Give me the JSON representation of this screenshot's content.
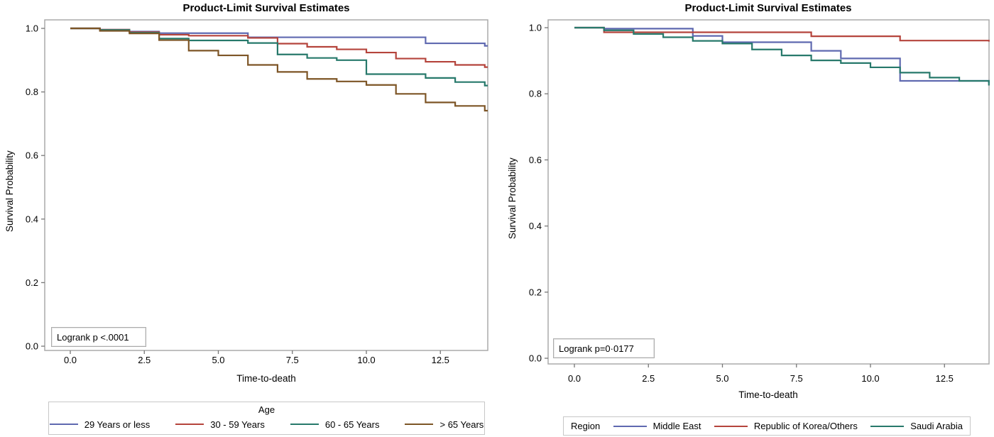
{
  "figure": {
    "background": "#ffffff",
    "frame_color": "#aaaaaa",
    "tick_color": "#777777"
  },
  "charts": [
    {
      "title": "Product-Limit Survival Estimates",
      "ylabel": "Survival Probability",
      "xlabel": "Time-to-death",
      "annotation": "Logrank p <.0001",
      "legend": {
        "title": "Age",
        "layout": "title-top",
        "position": "bottom"
      },
      "chart_data": {
        "type": "line",
        "subtype": "kaplan-meier-step",
        "title": "Product-Limit Survival Estimates",
        "xlabel": "Time-to-death",
        "ylabel": "Survival Probability",
        "xlim": [
          0,
          14.1
        ],
        "ylim": [
          0,
          1.0
        ],
        "xticks": [
          0.0,
          2.5,
          5.0,
          7.5,
          10.0,
          12.5
        ],
        "yticks": [
          1.0,
          0.8,
          0.6,
          0.4,
          0.2,
          0.0
        ],
        "grid": false,
        "legend_position": "bottom",
        "series": [
          {
            "name": "29 Years or less",
            "color": "#5f69b0",
            "steps": [
              [
                0,
                1.0
              ],
              [
                1,
                0.996
              ],
              [
                2,
                0.99
              ],
              [
                3,
                0.985
              ],
              [
                6,
                0.972
              ],
              [
                12,
                0.953
              ],
              [
                14,
                0.945
              ]
            ]
          },
          {
            "name": "30 - 59 Years",
            "color": "#b5443c",
            "steps": [
              [
                0,
                1.0
              ],
              [
                1,
                0.996
              ],
              [
                2,
                0.988
              ],
              [
                3,
                0.98
              ],
              [
                4,
                0.977
              ],
              [
                6,
                0.97
              ],
              [
                7,
                0.952
              ],
              [
                8,
                0.942
              ],
              [
                9,
                0.934
              ],
              [
                10,
                0.924
              ],
              [
                11,
                0.905
              ],
              [
                12,
                0.895
              ],
              [
                13,
                0.885
              ],
              [
                14,
                0.878
              ]
            ]
          },
          {
            "name": "60 - 65 Years",
            "color": "#27796b",
            "steps": [
              [
                0,
                1.0
              ],
              [
                1,
                0.995
              ],
              [
                2,
                0.986
              ],
              [
                3,
                0.968
              ],
              [
                4,
                0.962
              ],
              [
                6,
                0.954
              ],
              [
                7,
                0.918
              ],
              [
                8,
                0.907
              ],
              [
                9,
                0.9
              ],
              [
                10,
                0.856
              ],
              [
                12,
                0.844
              ],
              [
                13,
                0.831
              ],
              [
                14,
                0.82
              ]
            ]
          },
          {
            "name": "> 65 Years",
            "color": "#7d5526",
            "steps": [
              [
                0,
                1.0
              ],
              [
                1,
                0.992
              ],
              [
                2,
                0.984
              ],
              [
                3,
                0.963
              ],
              [
                4,
                0.93
              ],
              [
                5,
                0.915
              ],
              [
                6,
                0.885
              ],
              [
                7,
                0.863
              ],
              [
                8,
                0.841
              ],
              [
                9,
                0.833
              ],
              [
                10,
                0.822
              ],
              [
                11,
                0.794
              ],
              [
                12,
                0.767
              ],
              [
                13,
                0.756
              ],
              [
                14,
                0.741
              ]
            ]
          }
        ]
      }
    },
    {
      "title": "Product-Limit Survival Estimates",
      "ylabel": "Survival Probability",
      "xlabel": "Time-to-death",
      "annotation": "Logrank p=0·0177",
      "legend": {
        "title": "Region",
        "layout": "title-inline",
        "position": "bottom"
      },
      "chart_data": {
        "type": "line",
        "subtype": "kaplan-meier-step",
        "title": "Product-Limit Survival Estimates",
        "xlabel": "Time-to-death",
        "ylabel": "Survival Probability",
        "xlim": [
          0,
          14.0
        ],
        "ylim": [
          0,
          1.0
        ],
        "xticks": [
          0.0,
          2.5,
          5.0,
          7.5,
          10.0,
          12.5
        ],
        "yticks": [
          1.0,
          0.8,
          0.6,
          0.4,
          0.2,
          0.0
        ],
        "grid": false,
        "legend_position": "bottom",
        "series": [
          {
            "name": "Middle East",
            "color": "#5f69b0",
            "steps": [
              [
                0,
                1.0
              ],
              [
                1,
                0.997
              ],
              [
                4,
                0.975
              ],
              [
                5,
                0.956
              ],
              [
                8,
                0.93
              ],
              [
                9,
                0.907
              ],
              [
                11,
                0.839
              ],
              [
                14,
                0.833
              ]
            ]
          },
          {
            "name": "Republic of Korea/Others",
            "color": "#b5443c",
            "steps": [
              [
                0,
                1.0
              ],
              [
                1,
                0.986
              ],
              [
                8,
                0.974
              ],
              [
                11,
                0.961
              ],
              [
                14,
                0.958
              ]
            ]
          },
          {
            "name": "Saudi Arabia",
            "color": "#27796b",
            "steps": [
              [
                0,
                1.0
              ],
              [
                1,
                0.992
              ],
              [
                2,
                0.981
              ],
              [
                3,
                0.971
              ],
              [
                4,
                0.96
              ],
              [
                5,
                0.952
              ],
              [
                6,
                0.934
              ],
              [
                7,
                0.916
              ],
              [
                8,
                0.901
              ],
              [
                9,
                0.893
              ],
              [
                10,
                0.88
              ],
              [
                11,
                0.864
              ],
              [
                12,
                0.849
              ],
              [
                13,
                0.839
              ],
              [
                14,
                0.825
              ]
            ]
          }
        ]
      }
    }
  ]
}
